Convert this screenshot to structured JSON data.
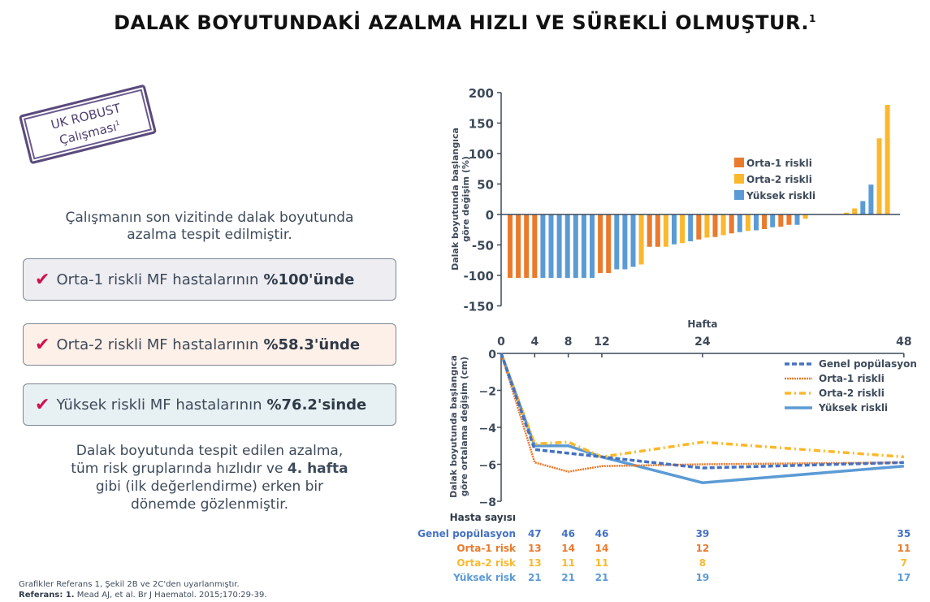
{
  "title": {
    "text": "DALAK BOYUTUNDAKİ AZALMA HIZLI VE SÜREKLİ OLMUŞTUR.",
    "sup": "1"
  },
  "stamp": {
    "line1": "UK ROBUST",
    "line2": "Çalışması",
    "sup": "1"
  },
  "intro": {
    "line1": "Çalışmanın son vizitinde dalak boyutunda",
    "line2": "azalma tespit edilmiştir."
  },
  "boxes": [
    {
      "text": "Orta-1 riskli MF hastalarının",
      "bold": "%100'ünde"
    },
    {
      "text": "Orta-2 riskli MF hastalarının",
      "bold": "%58.3'ünde"
    },
    {
      "text": "Yüksek riskli MF hastalarının",
      "bold": "%76.2'sinde"
    }
  ],
  "check_glyph": "✔",
  "summary": {
    "line1": "Dalak boyutunda tespit edilen azalma,",
    "line2a": "tüm risk gruplarında hızlıdır ve",
    "line2b": "4. hafta",
    "line3": "gibi (ilk değerlendirme) erken bir",
    "line4": "dönemde gözlenmiştir."
  },
  "footer": {
    "line1": "Grafikler Referans 1, Şekil 2B ve 2C'den uyarlanmıştır.",
    "ref_label": "Referans: 1.",
    "ref_text": "Mead AJ, et al. Br J Haematol. 2015;170:29-39."
  },
  "colors": {
    "orta1": "#ea7a2c",
    "orta2": "#fbb82c",
    "yuksek": "#5b9bd5",
    "genel": "#4472c4",
    "axis": "#3d4a5a"
  },
  "chart_data": [
    {
      "type": "bar",
      "title": "",
      "ylabel": "Dalak boyutunda başlangıca göre değişim (%)",
      "xlabel": "",
      "ylim": [
        -150,
        200
      ],
      "yticks": [
        200,
        150,
        100,
        50,
        0,
        -50,
        -100,
        -150
      ],
      "legend": [
        "Orta-1 riskli",
        "Orta-2 riskli",
        "Yüksek riskli"
      ],
      "legend_position": "center-right",
      "bars": [
        {
          "group": "Orta-1 riskli",
          "value": -104
        },
        {
          "group": "Orta-1 riskli",
          "value": -104
        },
        {
          "group": "Orta-1 riskli",
          "value": -104
        },
        {
          "group": "Orta-1 riskli",
          "value": -104
        },
        {
          "group": "Yüksek riskli",
          "value": -104
        },
        {
          "group": "Yüksek riskli",
          "value": -104
        },
        {
          "group": "Yüksek riskli",
          "value": -104
        },
        {
          "group": "Yüksek riskli",
          "value": -104
        },
        {
          "group": "Yüksek riskli",
          "value": -104
        },
        {
          "group": "Yüksek riskli",
          "value": -104
        },
        {
          "group": "Yüksek riskli",
          "value": -104
        },
        {
          "group": "Orta-1 riskli",
          "value": -96
        },
        {
          "group": "Orta-1 riskli",
          "value": -96
        },
        {
          "group": "Yüksek riskli",
          "value": -90
        },
        {
          "group": "Yüksek riskli",
          "value": -90
        },
        {
          "group": "Yüksek riskli",
          "value": -86
        },
        {
          "group": "Orta-2 riskli",
          "value": -82
        },
        {
          "group": "Orta-1 riskli",
          "value": -53
        },
        {
          "group": "Orta-1 riskli",
          "value": -53
        },
        {
          "group": "Orta-2 riskli",
          "value": -53
        },
        {
          "group": "Yüksek riskli",
          "value": -49
        },
        {
          "group": "Orta-2 riskli",
          "value": -47
        },
        {
          "group": "Yüksek riskli",
          "value": -44
        },
        {
          "group": "Orta-1 riskli",
          "value": -41
        },
        {
          "group": "Orta-2 riskli",
          "value": -38
        },
        {
          "group": "Orta-1 riskli",
          "value": -37
        },
        {
          "group": "Orta-2 riskli",
          "value": -34
        },
        {
          "group": "Orta-1 riskli",
          "value": -31
        },
        {
          "group": "Yüksek riskli",
          "value": -29
        },
        {
          "group": "Orta-2 riskli",
          "value": -27
        },
        {
          "group": "Yüksek riskli",
          "value": -26
        },
        {
          "group": "Orta-1 riskli",
          "value": -24
        },
        {
          "group": "Yüksek riskli",
          "value": -21
        },
        {
          "group": "Orta-1 riskli",
          "value": -20
        },
        {
          "group": "Orta-1 riskli",
          "value": -17
        },
        {
          "group": "Yüksek riskli",
          "value": -17
        },
        {
          "group": "Orta-2 riskli",
          "value": -7
        },
        {
          "group": "gap",
          "value": 0
        },
        {
          "group": "gap",
          "value": 0
        },
        {
          "group": "gap",
          "value": 0
        },
        {
          "group": "gap",
          "value": 0
        },
        {
          "group": "Orta-2 riskli",
          "value": 3
        },
        {
          "group": "Orta-2 riskli",
          "value": 10
        },
        {
          "group": "Yüksek riskli",
          "value": 22
        },
        {
          "group": "Yüksek riskli",
          "value": 49
        },
        {
          "group": "Orta-2 riskli",
          "value": 125
        },
        {
          "group": "Orta-2 riskli",
          "value": 180
        }
      ]
    },
    {
      "type": "line",
      "title": "",
      "xlabel": "Hafta",
      "ylabel": "Dalak boyutunda başlangıca göre ortalama değişim (cm)",
      "x": [
        0,
        4,
        8,
        12,
        24,
        48
      ],
      "xticks": [
        0,
        4,
        8,
        12,
        24,
        48
      ],
      "ylim": [
        -8,
        0
      ],
      "yticks": [
        0,
        -2,
        -4,
        -6,
        -8
      ],
      "legend_position": "upper-right",
      "series": [
        {
          "name": "Genel popülasyon",
          "style": "dashed",
          "values": [
            0,
            -5.2,
            -5.4,
            -5.6,
            -6.2,
            -5.9
          ]
        },
        {
          "name": "Orta-1 riskli",
          "style": "dotted",
          "values": [
            0,
            -5.9,
            -6.4,
            -6.1,
            -6.0,
            -5.9
          ]
        },
        {
          "name": "Orta-2 riskli",
          "style": "dash-dot",
          "values": [
            0,
            -4.9,
            -4.8,
            -5.6,
            -4.8,
            -5.6
          ]
        },
        {
          "name": "Yüksek riskli",
          "style": "solid",
          "values": [
            0,
            -5.0,
            -5.0,
            -5.6,
            -7.0,
            -6.1
          ]
        }
      ],
      "patient_table": {
        "header": "Hasta sayısı",
        "rows": [
          {
            "label": "Genel popülasyon",
            "values": [
              "47",
              "46",
              "46",
              "39",
              "35"
            ]
          },
          {
            "label": "Orta-1 risk",
            "values": [
              "13",
              "14",
              "14",
              "12",
              "11"
            ]
          },
          {
            "label": "Orta-2 risk",
            "values": [
              "13",
              "11",
              "11",
              "8",
              "7"
            ]
          },
          {
            "label": "Yüksek risk",
            "values": [
              "21",
              "21",
              "21",
              "19",
              "17"
            ]
          }
        ],
        "weeks": [
          4,
          8,
          12,
          24,
          48
        ]
      }
    }
  ]
}
